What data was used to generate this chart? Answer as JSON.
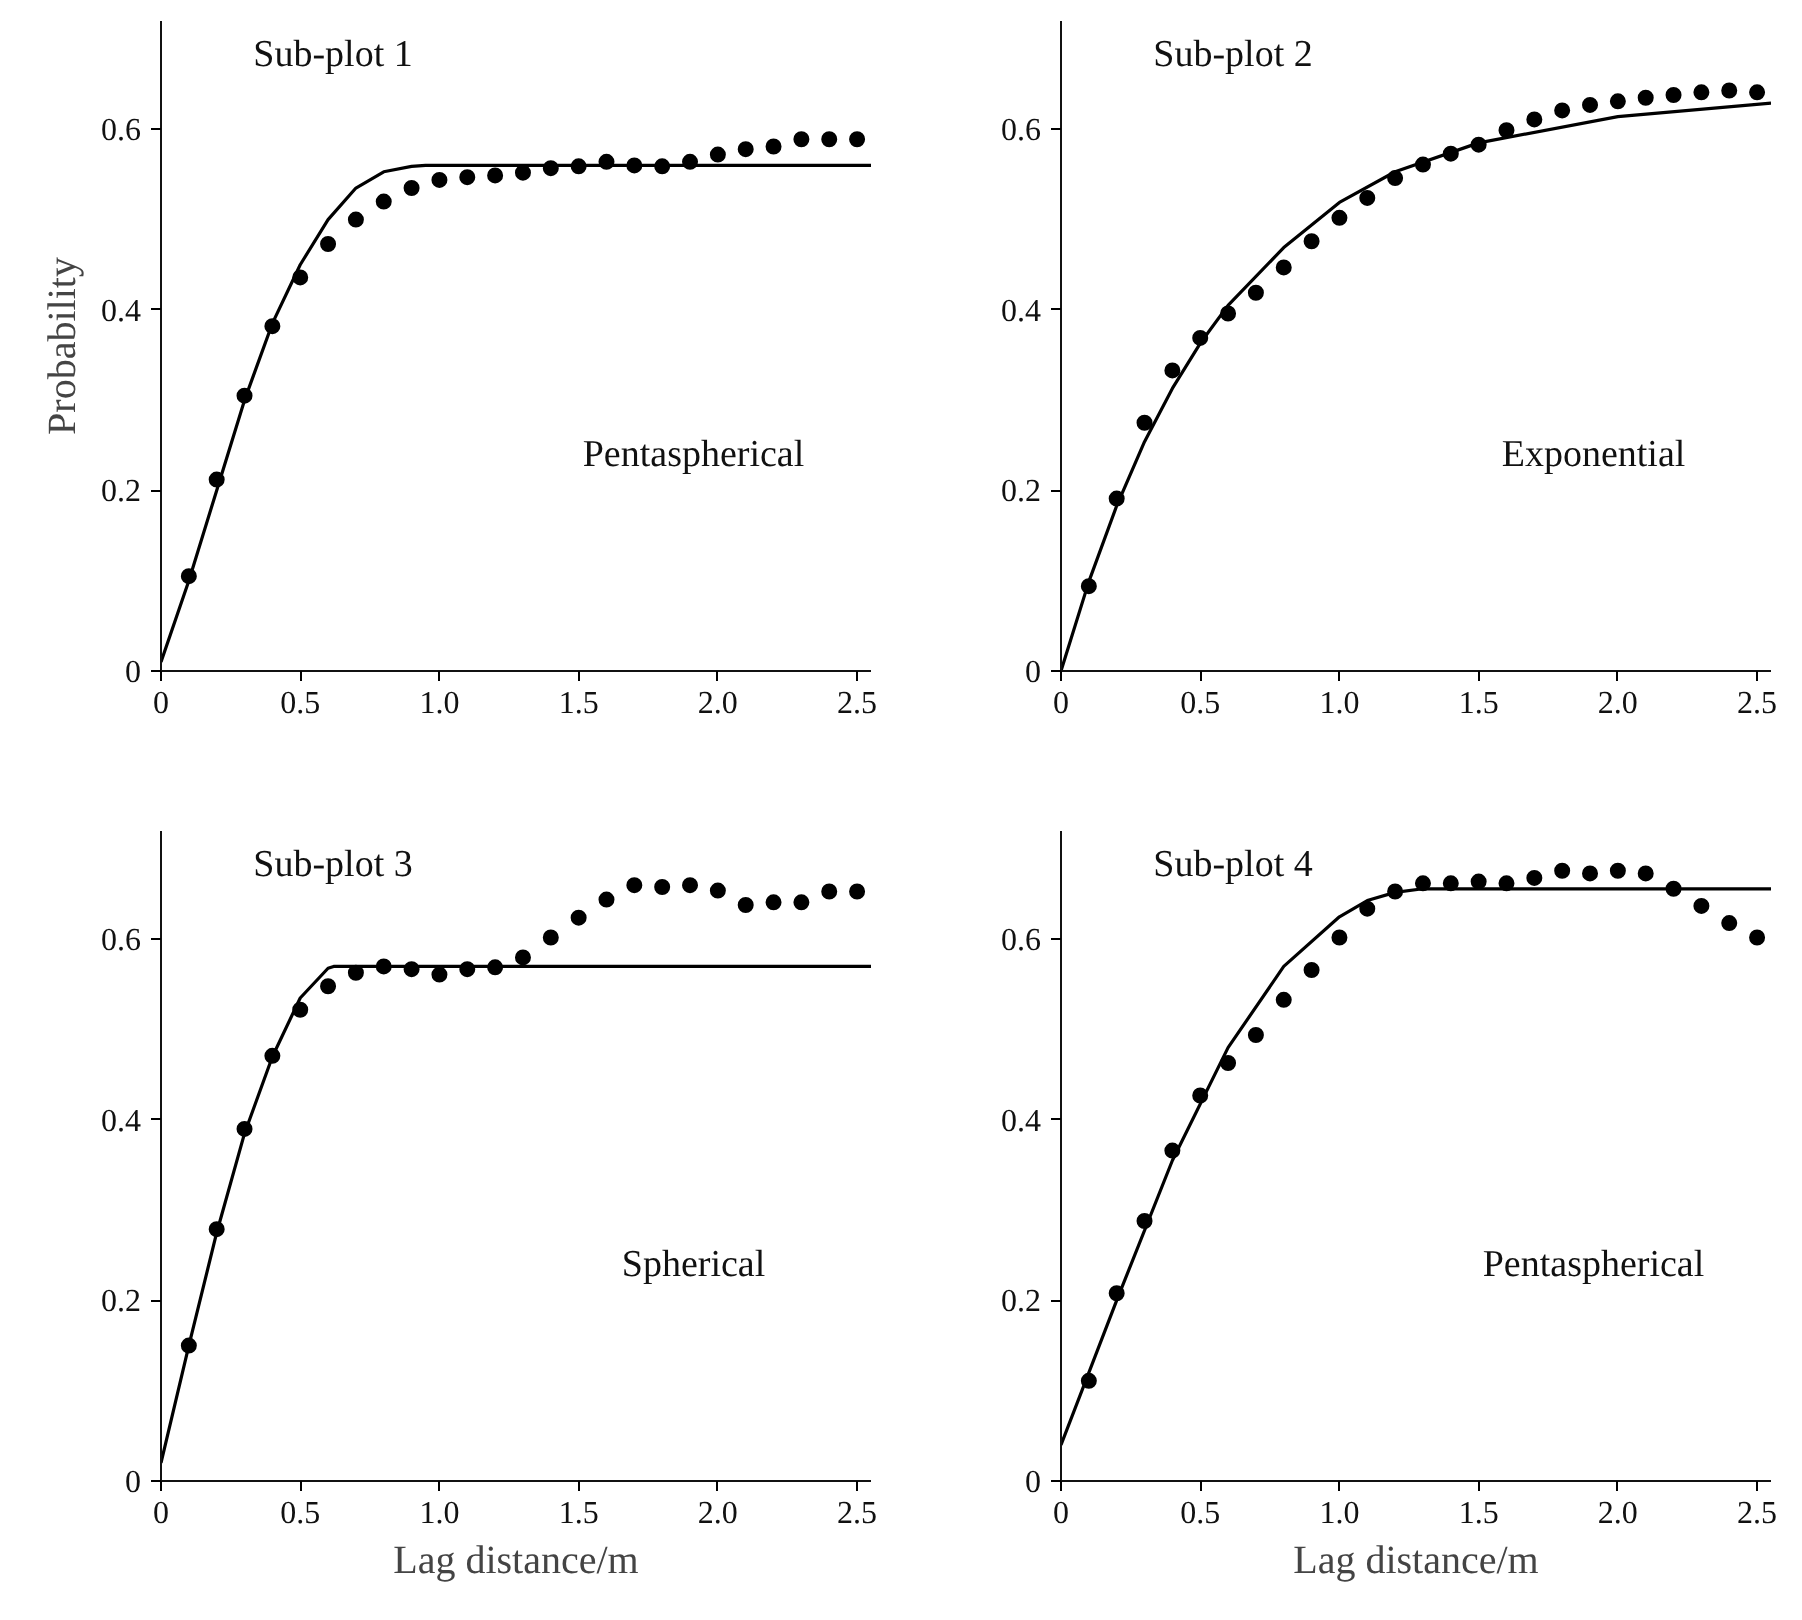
{
  "chart_data": [
    {
      "type": "scatter",
      "title": "Sub-plot 1",
      "ylabel": "Probability",
      "annotations": [
        "Pentaspherical"
      ],
      "xlim": [
        0,
        2.55
      ],
      "ylim": [
        0,
        0.72
      ],
      "xticks": [
        0,
        {
          "value": 0.5,
          "label": "0.5"
        },
        {
          "value": 1,
          "label": "1.0"
        },
        {
          "value": 1.5,
          "label": "1.5"
        },
        {
          "value": 2,
          "label": "2.0"
        },
        {
          "value": 2.5,
          "label": "2.5"
        }
      ],
      "yticks": [
        0,
        {
          "value": 0.2,
          "label": "0.2"
        },
        {
          "value": 0.4,
          "label": "0.4"
        },
        {
          "value": 0.6,
          "label": "0.6"
        }
      ],
      "grid": false,
      "series": [
        {
          "color": "#000000",
          "marker": "circle",
          "x": [
            0.1,
            0.2,
            0.3,
            0.4,
            0.5,
            0.6,
            0.7,
            0.8,
            0.9,
            1.0,
            1.1,
            1.2,
            1.3,
            1.4,
            1.5,
            1.6,
            1.7,
            1.8,
            1.9,
            2.0,
            2.1,
            2.2,
            2.3,
            2.4,
            2.5
          ],
          "values": [
            0.105,
            0.212,
            0.305,
            0.382,
            0.436,
            0.473,
            0.5,
            0.52,
            0.535,
            0.544,
            0.547,
            0.549,
            0.552,
            0.557,
            0.559,
            0.564,
            0.56,
            0.559,
            0.564,
            0.572,
            0.578,
            0.581,
            0.589,
            0.589,
            0.589
          ]
        },
        {
          "type": "line",
          "color": "#000000",
          "marker": "none",
          "line_style": "solid",
          "x": [
            0,
            0.1,
            0.2,
            0.3,
            0.4,
            0.5,
            0.6,
            0.7,
            0.8,
            0.9,
            0.95,
            2.55
          ],
          "values": [
            0.01,
            0.1,
            0.2,
            0.3,
            0.385,
            0.45,
            0.5,
            0.535,
            0.553,
            0.559,
            0.56,
            0.56
          ]
        }
      ]
    },
    {
      "type": "scatter",
      "title": "Sub-plot 2",
      "annotations": [
        "Exponential"
      ],
      "xlim": [
        0,
        2.55
      ],
      "ylim": [
        0,
        0.72
      ],
      "xticks": [
        0,
        {
          "value": 0.5,
          "label": "0.5"
        },
        {
          "value": 1,
          "label": "1.0"
        },
        {
          "value": 1.5,
          "label": "1.5"
        },
        {
          "value": 2,
          "label": "2.0"
        },
        {
          "value": 2.5,
          "label": "2.5"
        }
      ],
      "yticks": [
        0,
        {
          "value": 0.2,
          "label": "0.2"
        },
        {
          "value": 0.4,
          "label": "0.4"
        },
        {
          "value": 0.6,
          "label": "0.6"
        }
      ],
      "grid": false,
      "series": [
        {
          "color": "#000000",
          "marker": "circle",
          "x": [
            0.1,
            0.2,
            0.3,
            0.4,
            0.5,
            0.6,
            0.7,
            0.8,
            0.9,
            1.0,
            1.1,
            1.2,
            1.3,
            1.4,
            1.5,
            1.6,
            1.7,
            1.8,
            1.9,
            2.0,
            2.1,
            2.2,
            2.3,
            2.4,
            2.5
          ],
          "values": [
            0.094,
            0.191,
            0.275,
            0.333,
            0.369,
            0.396,
            0.419,
            0.447,
            0.476,
            0.502,
            0.524,
            0.546,
            0.561,
            0.573,
            0.583,
            0.599,
            0.611,
            0.621,
            0.627,
            0.631,
            0.635,
            0.638,
            0.641,
            0.643,
            0.641
          ]
        },
        {
          "type": "line",
          "color": "#000000",
          "marker": "none",
          "line_style": "solid",
          "x": [
            0,
            0.1,
            0.2,
            0.3,
            0.4,
            0.5,
            0.6,
            0.8,
            1.0,
            1.2,
            1.5,
            2.0,
            2.55
          ],
          "values": [
            0,
            0.099,
            0.183,
            0.254,
            0.313,
            0.363,
            0.405,
            0.469,
            0.519,
            0.553,
            0.585,
            0.614,
            0.629
          ]
        }
      ]
    },
    {
      "type": "scatter",
      "title": "Sub-plot 3",
      "xlabel": "Lag distance/m",
      "annotations": [
        "Spherical"
      ],
      "xlim": [
        0,
        2.55
      ],
      "ylim": [
        0,
        0.72
      ],
      "xticks": [
        0,
        {
          "value": 0.5,
          "label": "0.5"
        },
        {
          "value": 1,
          "label": "1.0"
        },
        {
          "value": 1.5,
          "label": "1.5"
        },
        {
          "value": 2,
          "label": "2.0"
        },
        {
          "value": 2.5,
          "label": "2.5"
        }
      ],
      "yticks": [
        0,
        {
          "value": 0.2,
          "label": "0.2"
        },
        {
          "value": 0.4,
          "label": "0.4"
        },
        {
          "value": 0.6,
          "label": "0.6"
        }
      ],
      "grid": false,
      "series": [
        {
          "color": "#000000",
          "marker": "circle",
          "x": [
            0.1,
            0.2,
            0.3,
            0.4,
            0.5,
            0.6,
            0.7,
            0.8,
            0.9,
            1.0,
            1.1,
            1.2,
            1.3,
            1.4,
            1.5,
            1.6,
            1.7,
            1.8,
            1.9,
            2.0,
            2.1,
            2.2,
            2.3,
            2.4,
            2.5
          ],
          "values": [
            0.15,
            0.279,
            0.39,
            0.471,
            0.522,
            0.548,
            0.563,
            0.57,
            0.567,
            0.561,
            0.567,
            0.569,
            0.58,
            0.602,
            0.624,
            0.644,
            0.66,
            0.658,
            0.66,
            0.654,
            0.638,
            0.641,
            0.641,
            0.653,
            0.653
          ]
        },
        {
          "type": "line",
          "color": "#000000",
          "marker": "none",
          "line_style": "solid",
          "x": [
            0,
            0.1,
            0.2,
            0.3,
            0.4,
            0.5,
            0.6,
            0.62,
            2.55
          ],
          "values": [
            0.02,
            0.15,
            0.275,
            0.385,
            0.47,
            0.535,
            0.568,
            0.57,
            0.57
          ]
        }
      ]
    },
    {
      "type": "scatter",
      "title": "Sub-plot 4",
      "xlabel": "Lag distance/m",
      "annotations": [
        "Pentaspherical"
      ],
      "xlim": [
        0,
        2.55
      ],
      "ylim": [
        0,
        0.72
      ],
      "xticks": [
        0,
        {
          "value": 0.5,
          "label": "0.5"
        },
        {
          "value": 1,
          "label": "1.0"
        },
        {
          "value": 1.5,
          "label": "1.5"
        },
        {
          "value": 2,
          "label": "2.0"
        },
        {
          "value": 2.5,
          "label": "2.5"
        }
      ],
      "yticks": [
        0,
        {
          "value": 0.2,
          "label": "0.2"
        },
        {
          "value": 0.4,
          "label": "0.4"
        },
        {
          "value": 0.6,
          "label": "0.6"
        }
      ],
      "grid": false,
      "series": [
        {
          "color": "#000000",
          "marker": "circle",
          "x": [
            0.1,
            0.2,
            0.3,
            0.4,
            0.5,
            0.6,
            0.7,
            0.8,
            0.9,
            1.0,
            1.1,
            1.2,
            1.3,
            1.4,
            1.5,
            1.6,
            1.7,
            1.8,
            1.9,
            2.0,
            2.1,
            2.2,
            2.3,
            2.4,
            2.5
          ],
          "values": [
            0.111,
            0.208,
            0.288,
            0.366,
            0.427,
            0.463,
            0.494,
            0.533,
            0.566,
            0.602,
            0.634,
            0.653,
            0.662,
            0.662,
            0.664,
            0.662,
            0.668,
            0.676,
            0.673,
            0.676,
            0.673,
            0.656,
            0.637,
            0.618,
            0.602
          ]
        },
        {
          "type": "line",
          "color": "#000000",
          "marker": "none",
          "line_style": "solid",
          "x": [
            0,
            0.2,
            0.4,
            0.6,
            0.8,
            1.0,
            1.1,
            1.2,
            1.3,
            2.55
          ],
          "values": [
            0.04,
            0.2,
            0.355,
            0.48,
            0.57,
            0.625,
            0.643,
            0.652,
            0.656,
            0.656
          ]
        }
      ]
    }
  ]
}
